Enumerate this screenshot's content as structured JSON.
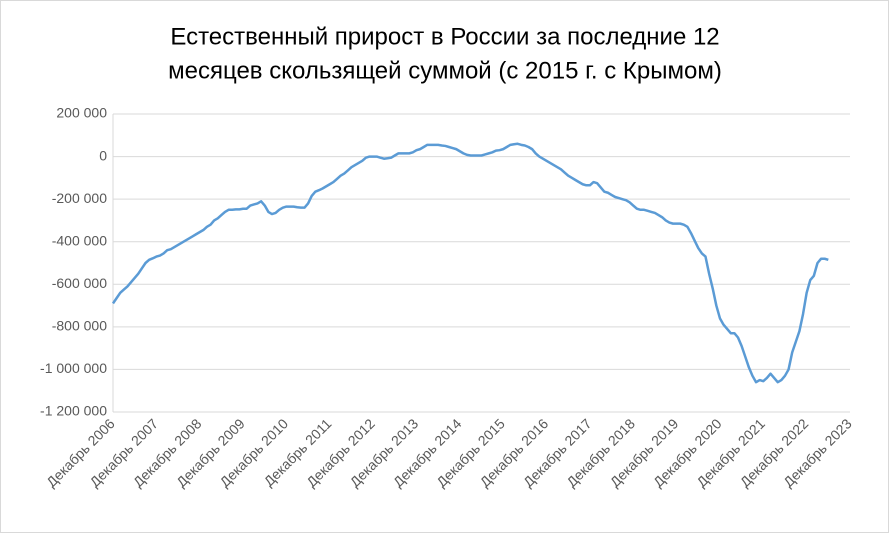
{
  "chart_data": {
    "type": "line",
    "title": [
      "Естественный прирост в России за последние 12",
      "месяцев скользящей суммой (с 2015 г. с Крымом)"
    ],
    "categories": [
      "Декабрь 2006",
      null,
      null,
      null,
      null,
      null,
      null,
      null,
      null,
      null,
      null,
      null,
      "Декабрь 2007",
      null,
      null,
      null,
      null,
      null,
      null,
      null,
      null,
      null,
      null,
      null,
      "Декабрь 2008",
      null,
      null,
      null,
      null,
      null,
      null,
      null,
      null,
      null,
      null,
      null,
      "Декабрь 2009",
      null,
      null,
      null,
      null,
      null,
      null,
      null,
      null,
      null,
      null,
      null,
      "Декабрь 2010",
      null,
      null,
      null,
      null,
      null,
      null,
      null,
      null,
      null,
      null,
      null,
      "Декабрь 2011",
      null,
      null,
      null,
      null,
      null,
      null,
      null,
      null,
      null,
      null,
      null,
      "Декабрь 2012",
      null,
      null,
      null,
      null,
      null,
      null,
      null,
      null,
      null,
      null,
      null,
      "Декабрь 2013",
      null,
      null,
      null,
      null,
      null,
      null,
      null,
      null,
      null,
      null,
      null,
      "Декабрь 2014",
      null,
      null,
      null,
      null,
      null,
      null,
      null,
      null,
      null,
      null,
      null,
      "Декабрь 2015",
      null,
      null,
      null,
      null,
      null,
      null,
      null,
      null,
      null,
      null,
      null,
      "Декабрь 2016",
      null,
      null,
      null,
      null,
      null,
      null,
      null,
      null,
      null,
      null,
      null,
      "Декабрь 2017",
      null,
      null,
      null,
      null,
      null,
      null,
      null,
      null,
      null,
      null,
      null,
      "Декабрь 2018",
      null,
      null,
      null,
      null,
      null,
      null,
      null,
      null,
      null,
      null,
      null,
      "Декабрь 2019",
      null,
      null,
      null,
      null,
      null,
      null,
      null,
      null,
      null,
      null,
      null,
      "Декабрь 2020",
      null,
      null,
      null,
      null,
      null,
      null,
      null,
      null,
      null,
      null,
      null,
      "Декабрь 2021",
      null,
      null,
      null,
      null,
      null,
      null,
      null,
      null,
      null,
      null,
      null,
      "Декабрь 2022",
      null,
      null,
      null,
      null,
      null,
      null,
      null,
      null,
      null,
      null,
      null,
      "Декабрь 2023"
    ],
    "series": [
      {
        "color": "#5b9bd5",
        "values": [
          -690000,
          -665000,
          -640000,
          -625000,
          -610000,
          -590000,
          -570000,
          -550000,
          -525000,
          -500000,
          -485000,
          -478000,
          -470000,
          -465000,
          -455000,
          -440000,
          -435000,
          -425000,
          -415000,
          -405000,
          -395000,
          -385000,
          -375000,
          -365000,
          -355000,
          -345000,
          -330000,
          -320000,
          -300000,
          -290000,
          -275000,
          -260000,
          -250000,
          -250000,
          -248000,
          -248000,
          -245000,
          -245000,
          -230000,
          -225000,
          -220000,
          -210000,
          -230000,
          -260000,
          -270000,
          -265000,
          -250000,
          -240000,
          -235000,
          -235000,
          -235000,
          -238000,
          -240000,
          -240000,
          -220000,
          -185000,
          -165000,
          -158000,
          -150000,
          -140000,
          -130000,
          -120000,
          -105000,
          -90000,
          -80000,
          -65000,
          -50000,
          -40000,
          -30000,
          -20000,
          -5000,
          0,
          0,
          0,
          -5000,
          -10000,
          -8000,
          -5000,
          5000,
          15000,
          15000,
          15000,
          15000,
          20000,
          30000,
          35000,
          45000,
          55000,
          55000,
          55000,
          55000,
          52000,
          50000,
          45000,
          40000,
          35000,
          25000,
          15000,
          8000,
          5000,
          5000,
          5000,
          5000,
          10000,
          15000,
          20000,
          28000,
          30000,
          35000,
          45000,
          55000,
          58000,
          60000,
          55000,
          52000,
          45000,
          35000,
          15000,
          0,
          -10000,
          -20000,
          -30000,
          -40000,
          -50000,
          -60000,
          -75000,
          -90000,
          -100000,
          -110000,
          -120000,
          -130000,
          -135000,
          -135000,
          -120000,
          -125000,
          -145000,
          -165000,
          -170000,
          -180000,
          -190000,
          -195000,
          -200000,
          -205000,
          -215000,
          -230000,
          -245000,
          -250000,
          -250000,
          -255000,
          -260000,
          -265000,
          -275000,
          -285000,
          -300000,
          -310000,
          -315000,
          -315000,
          -315000,
          -320000,
          -330000,
          -360000,
          -395000,
          -430000,
          -455000,
          -470000,
          -550000,
          -620000,
          -700000,
          -760000,
          -790000,
          -810000,
          -830000,
          -830000,
          -850000,
          -890000,
          -940000,
          -990000,
          -1030000,
          -1060000,
          -1050000,
          -1055000,
          -1040000,
          -1020000,
          -1040000,
          -1060000,
          -1050000,
          -1030000,
          -1000000,
          -920000,
          -870000,
          -820000,
          -740000,
          -640000,
          -580000,
          -560000,
          -500000,
          -480000,
          -480000,
          -485000,
          null,
          null,
          null,
          null,
          null,
          null
        ]
      }
    ],
    "ylim": [
      -1200000,
      200000
    ],
    "yticks": [
      {
        "value": -1200000,
        "label": "-1 200 000"
      },
      {
        "value": -1000000,
        "label": "-1 000 000"
      },
      {
        "value": -800000,
        "label": "-800 000"
      },
      {
        "value": -600000,
        "label": "-600 000"
      },
      {
        "value": -400000,
        "label": "-400 000"
      },
      {
        "value": -200000,
        "label": "-200 000"
      },
      0,
      {
        "value": 200000,
        "label": "200 000"
      }
    ],
    "grid": true
  }
}
